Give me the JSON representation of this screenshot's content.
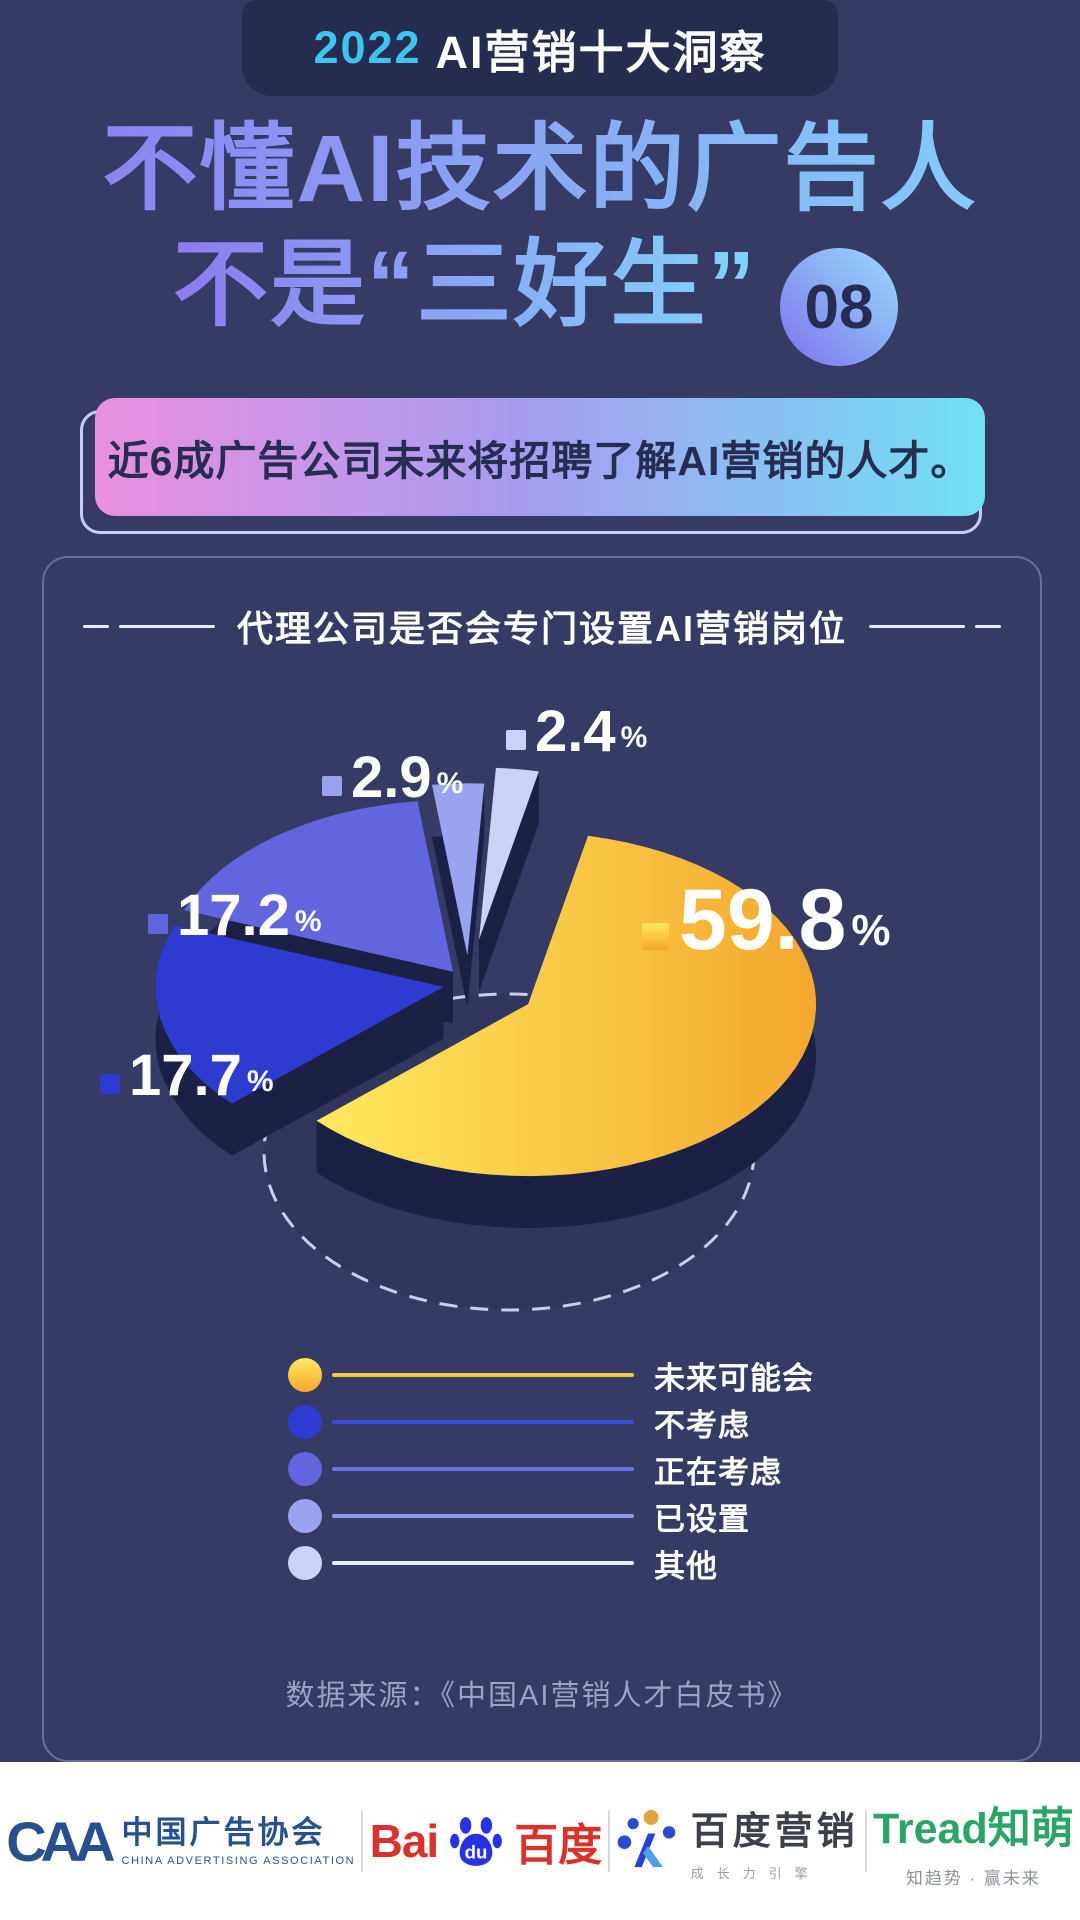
{
  "banner": {
    "year": "2022",
    "title_rest": "AI营销十大洞察"
  },
  "title": {
    "line1": "不懂AI技术的广告人",
    "line2": "不是“三好生”",
    "badge_number": "08"
  },
  "subtitle": {
    "text": "近6成广告公司未来将招聘了解AI营销的人才。"
  },
  "chart_card": {
    "title": "代理公司是否会专门设置AI营销岗位",
    "source": "数据来源：《中国AI营销人才白皮书》"
  },
  "chart_data": {
    "type": "pie",
    "style": "3d-exploded",
    "title": "代理公司是否会专门设置AI营销岗位",
    "unit": "%",
    "legend_position": "bottom",
    "slices": [
      {
        "label": "未来可能会",
        "value": 59.8,
        "color": "#F3A72F",
        "color2": "#FFE95E",
        "line_color": "#EFC93D"
      },
      {
        "label": "不考虑",
        "value": 17.7,
        "color": "#2E3BD1",
        "line_color": "#3D49DC"
      },
      {
        "label": "正在考虑",
        "value": 17.2,
        "color": "#6165DE",
        "line_color": "#6C74E4"
      },
      {
        "label": "已设置",
        "value": 2.9,
        "color": "#9AA3F0",
        "line_color": "#8F9AEC"
      },
      {
        "label": "其他",
        "value": 2.4,
        "color": "#CBD4F8",
        "line_color": "#E9EDFA"
      }
    ]
  },
  "footer": {
    "caa": {
      "mark": "CAA",
      "cn": "中国广告协会",
      "en": "CHINA ADVERTISING ASSOCIATION"
    },
    "baidu": {
      "bai": "Bai",
      "du": "du",
      "cn": "百度"
    },
    "baidu_marketing": {
      "cn": "百度营销",
      "slogan": "成长力引擎"
    },
    "trend": {
      "en": "Tread",
      "cn": "知萌",
      "slogan": "知趋势 · 赢未来"
    }
  }
}
